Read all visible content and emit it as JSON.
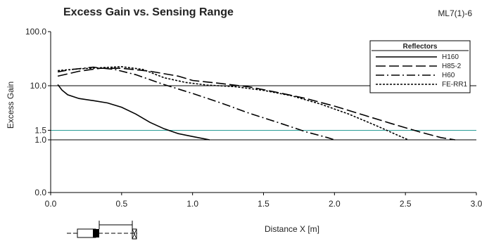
{
  "header": {
    "title": "Excess Gain vs. Sensing Range",
    "model": "ML7(1)-6"
  },
  "chart_data": {
    "type": "line",
    "title": "Excess Gain vs. Sensing Range",
    "xlabel": "Distance X [m]",
    "ylabel": "Excess Gain",
    "xlim": [
      0.0,
      3.0
    ],
    "x_ticks": [
      "0.0",
      "0.5",
      "1.0",
      "1.5",
      "2.0",
      "2.5",
      "3.0"
    ],
    "y_ticks": [
      {
        "value": 100,
        "label": "100.0"
      },
      {
        "value": 10,
        "label": "10.0"
      },
      {
        "value": 1.5,
        "label": "1.5"
      },
      {
        "value": 1,
        "label": "1.0"
      },
      {
        "value": 0.1,
        "label": "0.0"
      }
    ],
    "gridlines": [
      {
        "value": 10,
        "color": "#000000"
      },
      {
        "value": 1.5,
        "color": "#2a9d96"
      },
      {
        "value": 1,
        "color": "#000000"
      }
    ],
    "legend": {
      "title": "Reflectors",
      "position": "top-right"
    },
    "series": [
      {
        "name": "H160",
        "dash": "solid",
        "x": [
          0.05,
          0.08,
          0.12,
          0.2,
          0.3,
          0.4,
          0.5,
          0.6,
          0.7,
          0.8,
          0.9,
          1.0,
          1.12
        ],
        "y": [
          10.5,
          8.3,
          6.8,
          5.8,
          5.3,
          4.8,
          4.0,
          3.0,
          2.1,
          1.6,
          1.3,
          1.15,
          1.0
        ]
      },
      {
        "name": "H85-2",
        "dash": "long-dash",
        "x": [
          0.05,
          0.2,
          0.35,
          0.5,
          0.7,
          0.9,
          1.0,
          1.2,
          1.4,
          1.6,
          1.8,
          2.0,
          2.2,
          2.4,
          2.6,
          2.75,
          2.85
        ],
        "y": [
          15,
          18.5,
          21,
          21,
          18.5,
          15,
          12.5,
          11,
          9.5,
          7.5,
          5.8,
          4.2,
          2.9,
          2.0,
          1.4,
          1.1,
          1.0
        ]
      },
      {
        "name": "H60",
        "dash": "dash-dot",
        "x": [
          0.05,
          0.15,
          0.3,
          0.45,
          0.6,
          0.8,
          1.0,
          1.2,
          1.4,
          1.6,
          1.8,
          1.95,
          2.0
        ],
        "y": [
          18,
          20,
          22,
          20,
          16,
          10.5,
          7.2,
          4.8,
          3.1,
          2.1,
          1.4,
          1.1,
          1.0
        ]
      },
      {
        "name": "FE-RR1",
        "dash": "short-dash",
        "x": [
          0.05,
          0.2,
          0.35,
          0.5,
          0.65,
          0.8,
          0.95,
          1.1,
          1.3,
          1.5,
          1.7,
          1.9,
          2.1,
          2.3,
          2.45,
          2.52
        ],
        "y": [
          19,
          20.5,
          21.5,
          22.5,
          20,
          14,
          11.5,
          10.3,
          9.6,
          8.2,
          6.5,
          4.6,
          3.0,
          1.8,
          1.2,
          1.0
        ]
      }
    ]
  }
}
